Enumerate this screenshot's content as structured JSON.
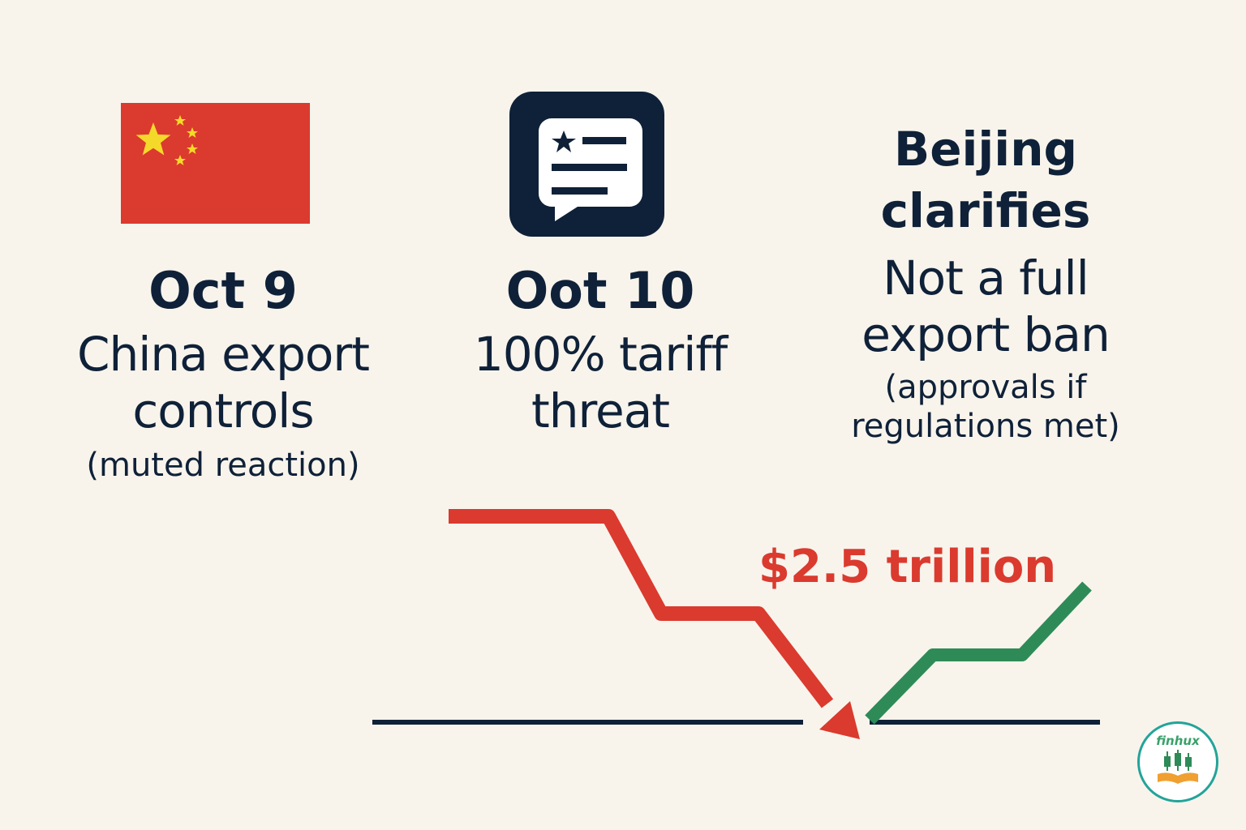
{
  "colors": {
    "background": "#f8f4ec",
    "text": "#0f2138",
    "red": "#db3a2e",
    "green": "#2e8b57",
    "yellow": "#f5d92a"
  },
  "events": [
    {
      "date": "Oct 9",
      "desc_line1": "China export",
      "desc_line2": "controls",
      "note": "(muted reaction)",
      "icon": "china-flag-icon"
    },
    {
      "date": "Oot 10",
      "desc_line1": "100% tariff",
      "desc_line2": "threat",
      "icon": "flag-chat-bubble-icon"
    },
    {
      "headline_line1": "Beijing",
      "headline_line2": "clarifies",
      "desc_line1": "Not a full",
      "desc_line2": "export ban",
      "note_line1": "(approvals if",
      "note_line2": "regulations met)"
    }
  ],
  "market": {
    "amount_label": "$2.5 trillion",
    "decline_color": "#db3a2e",
    "recovery_color": "#2e8b57"
  },
  "logo": {
    "text": "finhux",
    "icon": "candlestick-book-logo-icon"
  }
}
